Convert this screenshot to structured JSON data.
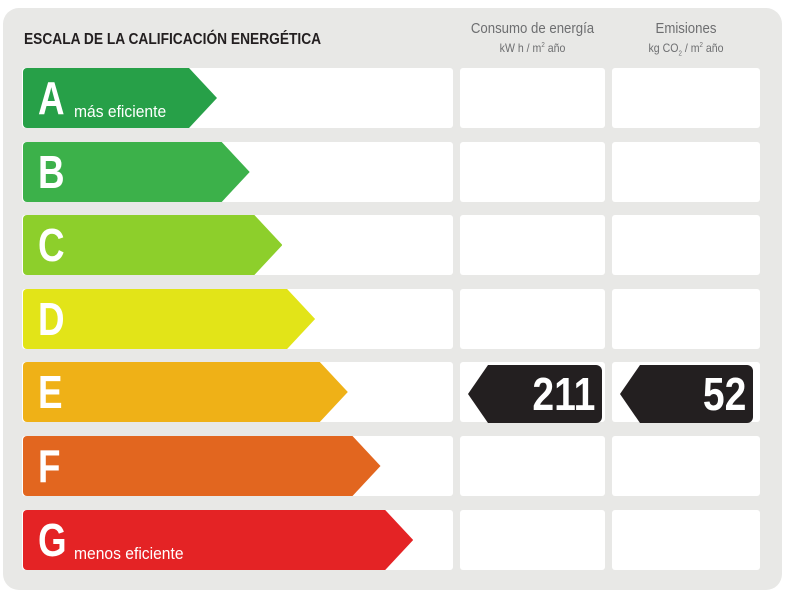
{
  "title": "ESCALA DE LA CALIFICACIÓN ENERGÉTICA",
  "columns": [
    {
      "label": "Consumo de energía",
      "unit_pre": "kW h / m",
      "unit_sup": "2",
      "unit_post": " año"
    },
    {
      "label": "Emisiones",
      "unit_pre": "kg CO",
      "unit_sub": "2",
      "unit_mid": " / m",
      "unit_sup": "2",
      "unit_post": " año"
    }
  ],
  "ratings": [
    {
      "letter": "A",
      "subtitle": "más eficiente",
      "color": "#27a048"
    },
    {
      "letter": "B",
      "subtitle": "",
      "color": "#3cb14a"
    },
    {
      "letter": "C",
      "subtitle": "",
      "color": "#8dcf2b"
    },
    {
      "letter": "D",
      "subtitle": "",
      "color": "#e2e418"
    },
    {
      "letter": "E",
      "subtitle": "",
      "color": "#efb117"
    },
    {
      "letter": "F",
      "subtitle": "",
      "color": "#e2661f"
    },
    {
      "letter": "G",
      "subtitle": "menos eficiente",
      "color": "#e42325"
    }
  ],
  "current": {
    "rating": "E",
    "consumption": "211",
    "emissions": "52"
  }
}
